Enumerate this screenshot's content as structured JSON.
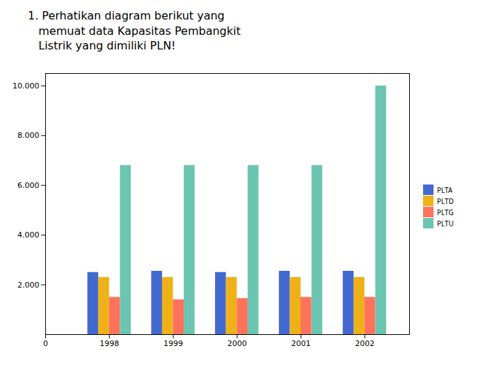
{
  "chart_data": {
    "type": "bar",
    "title": "1. Perhatikan diagram berikut yang\n   memuat data Kapasitas Pembangkit\n   Listrik yang dimiliki PLN!",
    "categories": [
      "0",
      "1998",
      "1999",
      "2000",
      "2001",
      "2002"
    ],
    "series": [
      {
        "name": "PLTA",
        "values": [
          null,
          2500,
          2550,
          2500,
          2550,
          2550
        ]
      },
      {
        "name": "PLTD",
        "values": [
          null,
          2300,
          2300,
          2300,
          2300,
          2300
        ]
      },
      {
        "name": "PLTG",
        "values": [
          null,
          1500,
          1400,
          1450,
          1500,
          1500
        ]
      },
      {
        "name": "PLTU",
        "values": [
          null,
          6800,
          6800,
          6800,
          6800,
          10000
        ]
      }
    ],
    "ylim": [
      0,
      10500
    ],
    "yticks": [
      {
        "value": 2000,
        "label": "2.000"
      },
      {
        "value": 4000,
        "label": "4.000"
      },
      {
        "value": 6000,
        "label": "6.000"
      },
      {
        "value": 8000,
        "label": "8.000"
      },
      {
        "value": 10000,
        "label": "10.000"
      }
    ],
    "grid": false,
    "legend": "right"
  }
}
